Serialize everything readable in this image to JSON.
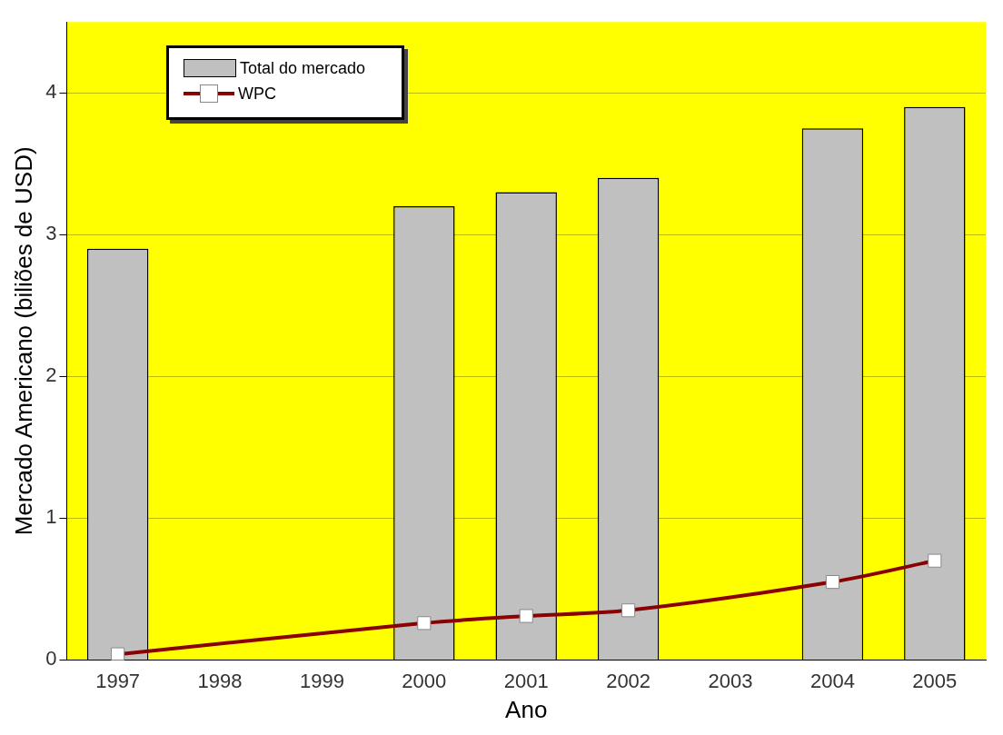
{
  "chart_data": {
    "type": "bar",
    "xlabel": "Ano",
    "ylabel": "Mercado Americano (biliões de USD)",
    "categories": [
      "1997",
      "1998",
      "1999",
      "2000",
      "2001",
      "2002",
      "2003",
      "2004",
      "2005"
    ],
    "series": [
      {
        "name": "Total do mercado",
        "color": "#c0c0c0",
        "values": [
          2.9,
          null,
          null,
          3.2,
          3.3,
          3.4,
          null,
          3.75,
          3.9
        ]
      },
      {
        "name": "WPC",
        "type": "line",
        "color": "#8b0000",
        "values": [
          0.04,
          null,
          null,
          0.26,
          0.31,
          0.35,
          null,
          0.55,
          0.7
        ]
      }
    ],
    "ylim": [
      0,
      4.5
    ],
    "yticks": [
      0,
      1,
      2,
      3,
      4
    ],
    "grid": "y",
    "legend": "top left",
    "marker": "square"
  }
}
